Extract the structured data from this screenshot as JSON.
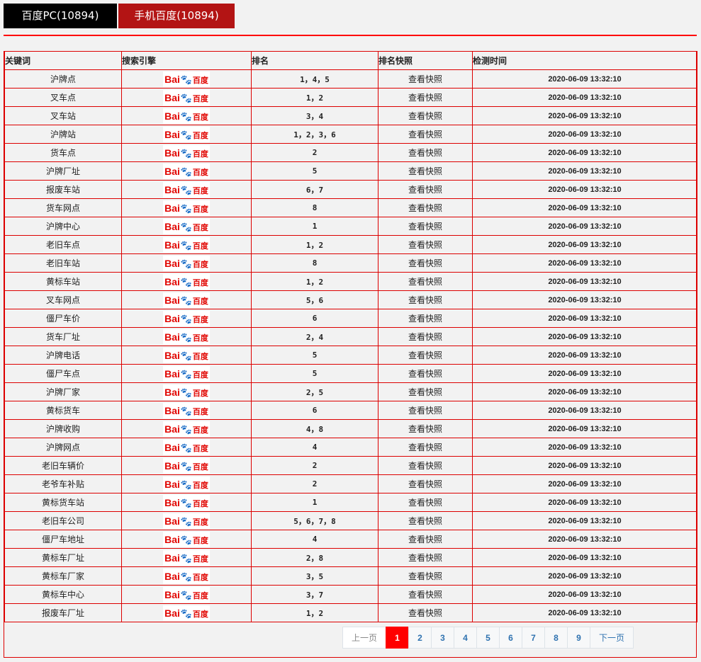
{
  "tabs": [
    {
      "label": "百度PC(10894)"
    },
    {
      "label": "手机百度(10894)"
    }
  ],
  "table": {
    "headers": [
      "关键词",
      "搜索引擎",
      "排名",
      "排名快照",
      "检测时间"
    ],
    "engine": {
      "name": "baidu-logo",
      "logo_text": "Bai du 百度",
      "colors": {
        "red": "#e10602",
        "blue": "#2932e1"
      }
    },
    "rows": [
      {
        "keyword": "沪牌点",
        "rank": "1，4，5",
        "snapshot": "查看快照",
        "time": "2020-06-09 13:32:10"
      },
      {
        "keyword": "叉车点",
        "rank": "1，2",
        "snapshot": "查看快照",
        "time": "2020-06-09 13:32:10"
      },
      {
        "keyword": "叉车站",
        "rank": "3，4",
        "snapshot": "查看快照",
        "time": "2020-06-09 13:32:10"
      },
      {
        "keyword": "沪牌站",
        "rank": "1，2，3，6",
        "snapshot": "查看快照",
        "time": "2020-06-09 13:32:10"
      },
      {
        "keyword": "货车点",
        "rank": "2",
        "snapshot": "查看快照",
        "time": "2020-06-09 13:32:10"
      },
      {
        "keyword": "沪牌厂址",
        "rank": "5",
        "snapshot": "查看快照",
        "time": "2020-06-09 13:32:10"
      },
      {
        "keyword": "报废车站",
        "rank": "6，7",
        "snapshot": "查看快照",
        "time": "2020-06-09 13:32:10"
      },
      {
        "keyword": "货车网点",
        "rank": "8",
        "snapshot": "查看快照",
        "time": "2020-06-09 13:32:10"
      },
      {
        "keyword": "沪牌中心",
        "rank": "1",
        "snapshot": "查看快照",
        "time": "2020-06-09 13:32:10"
      },
      {
        "keyword": "老旧车点",
        "rank": "1，2",
        "snapshot": "查看快照",
        "time": "2020-06-09 13:32:10"
      },
      {
        "keyword": "老旧车站",
        "rank": "8",
        "snapshot": "查看快照",
        "time": "2020-06-09 13:32:10"
      },
      {
        "keyword": "黄标车站",
        "rank": "1，2",
        "snapshot": "查看快照",
        "time": "2020-06-09 13:32:10"
      },
      {
        "keyword": "叉车网点",
        "rank": "5，6",
        "snapshot": "查看快照",
        "time": "2020-06-09 13:32:10"
      },
      {
        "keyword": "僵尸车价",
        "rank": "6",
        "snapshot": "查看快照",
        "time": "2020-06-09 13:32:10"
      },
      {
        "keyword": "货车厂址",
        "rank": "2，4",
        "snapshot": "查看快照",
        "time": "2020-06-09 13:32:10"
      },
      {
        "keyword": "沪牌电话",
        "rank": "5",
        "snapshot": "查看快照",
        "time": "2020-06-09 13:32:10"
      },
      {
        "keyword": "僵尸车点",
        "rank": "5",
        "snapshot": "查看快照",
        "time": "2020-06-09 13:32:10"
      },
      {
        "keyword": "沪牌厂家",
        "rank": "2，5",
        "snapshot": "查看快照",
        "time": "2020-06-09 13:32:10"
      },
      {
        "keyword": "黄标货车",
        "rank": "6",
        "snapshot": "查看快照",
        "time": "2020-06-09 13:32:10"
      },
      {
        "keyword": "沪牌收购",
        "rank": "4，8",
        "snapshot": "查看快照",
        "time": "2020-06-09 13:32:10"
      },
      {
        "keyword": "沪牌网点",
        "rank": "4",
        "snapshot": "查看快照",
        "time": "2020-06-09 13:32:10"
      },
      {
        "keyword": "老旧车辆价",
        "rank": "2",
        "snapshot": "查看快照",
        "time": "2020-06-09 13:32:10"
      },
      {
        "keyword": "老爷车补贴",
        "rank": "2",
        "snapshot": "查看快照",
        "time": "2020-06-09 13:32:10"
      },
      {
        "keyword": "黄标货车站",
        "rank": "1",
        "snapshot": "查看快照",
        "time": "2020-06-09 13:32:10"
      },
      {
        "keyword": "老旧车公司",
        "rank": "5，6，7，8",
        "snapshot": "查看快照",
        "time": "2020-06-09 13:32:10"
      },
      {
        "keyword": "僵尸车地址",
        "rank": "4",
        "snapshot": "查看快照",
        "time": "2020-06-09 13:32:10"
      },
      {
        "keyword": "黄标车厂址",
        "rank": "2，8",
        "snapshot": "查看快照",
        "time": "2020-06-09 13:32:10"
      },
      {
        "keyword": "黄标车厂家",
        "rank": "3，5",
        "snapshot": "查看快照",
        "time": "2020-06-09 13:32:10"
      },
      {
        "keyword": "黄标车中心",
        "rank": "3，7",
        "snapshot": "查看快照",
        "time": "2020-06-09 13:32:10"
      },
      {
        "keyword": "报废车厂址",
        "rank": "1，2",
        "snapshot": "查看快照",
        "time": "2020-06-09 13:32:10"
      }
    ]
  },
  "pagination": {
    "prev": "上一页",
    "next": "下一页",
    "pages": [
      "1",
      "2",
      "3",
      "4",
      "5",
      "6",
      "7",
      "8",
      "9"
    ],
    "current": "1"
  },
  "colors": {
    "accent": "#ff0000",
    "tab_pc": "#000000",
    "tab_mobile": "#b31414"
  }
}
